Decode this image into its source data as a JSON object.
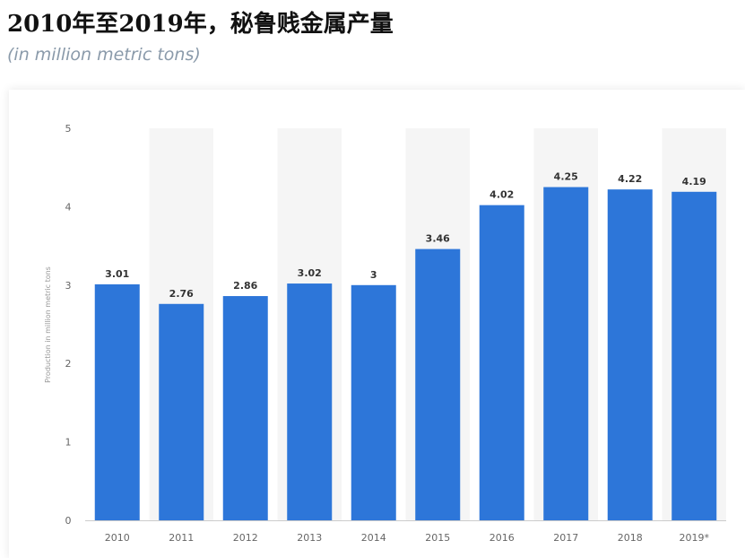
{
  "title": "2010年至2019年，秘鲁贱金属产量",
  "subtitle": "(in million metric tons)",
  "chart_data": {
    "type": "bar",
    "categories": [
      "2010",
      "2011",
      "2012",
      "2013",
      "2014",
      "2015",
      "2016",
      "2017",
      "2018",
      "2019*"
    ],
    "values": [
      3.01,
      2.76,
      2.86,
      3.02,
      3,
      3.46,
      4.02,
      4.25,
      4.22,
      4.19
    ],
    "value_labels": [
      "3.01",
      "2.76",
      "2.86",
      "3.02",
      "3",
      "3.46",
      "4.02",
      "4.25",
      "4.22",
      "4.19"
    ],
    "xlabel": "",
    "ylabel": "Production in million metric tons",
    "ylim": [
      0,
      5
    ],
    "yticks": [
      0,
      1,
      2,
      3,
      4,
      5
    ],
    "bar_color": "#2d76d9",
    "band_color": "#f5f5f5",
    "grid": false,
    "legend": "none"
  }
}
